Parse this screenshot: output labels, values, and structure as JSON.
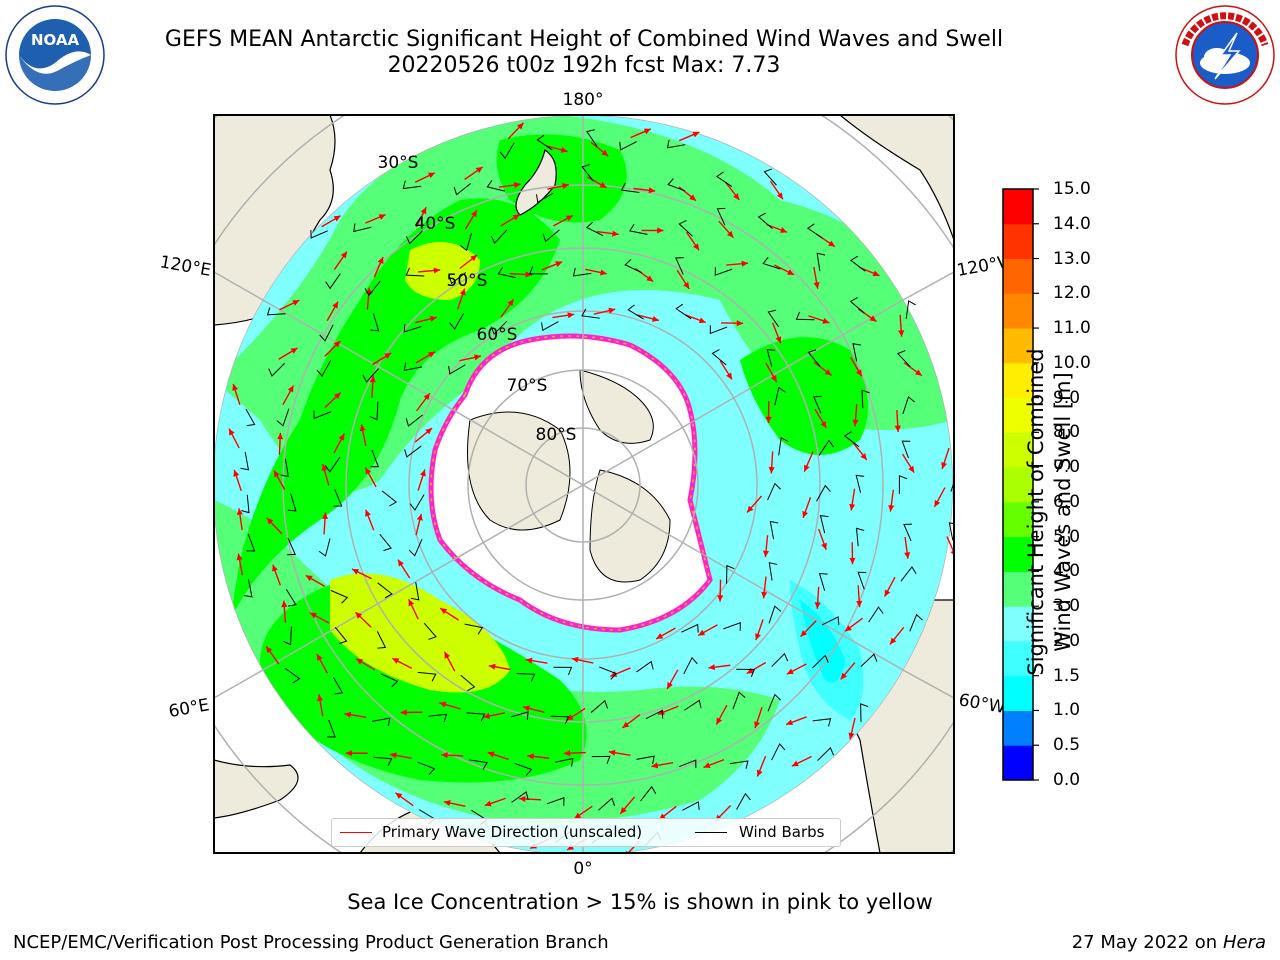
{
  "header": {
    "title_line1": "GEFS MEAN Antarctic Significant Height of Combined Wind Waves and Swell",
    "title_line2": "20220526 t00z 192h fcst   Max: 7.73"
  },
  "logos": {
    "left": {
      "icon": "noaa-logo",
      "text": "NOAA",
      "ring_text": "NATIONAL OCEANIC AND ATMOSPHERIC ADMINISTRATION · U.S. DEPARTMENT OF COMMERCE"
    },
    "right": {
      "icon": "nws-logo",
      "ring_text": "NATIONAL WEATHER SERVICE"
    }
  },
  "map": {
    "projection": "south-polar-stereographic",
    "longitude_labels": [
      "180°",
      "120°E",
      "120°W",
      "60°E",
      "60°W",
      "0°"
    ],
    "latitude_labels": [
      "30°S",
      "40°S",
      "50°S",
      "60°S",
      "70°S",
      "80°S"
    ],
    "colors": {
      "land": "#efebdc",
      "ice": "#ffffff",
      "arrow": "#ff0000",
      "barb": "#000000",
      "ice_edge": "#ff22cc",
      "grid": "#b0b0b0"
    }
  },
  "colorbar": {
    "label_line1": "Significant Height of Combined",
    "label_line2": "Wind Waves and Swell [m]",
    "ticks": [
      "0.0",
      "0.5",
      "1.0",
      "1.5",
      "2.0",
      "3.0",
      "4.0",
      "5.0",
      "6.0",
      "7.0",
      "8.0",
      "9.0",
      "10.0",
      "11.0",
      "12.0",
      "13.0",
      "14.0",
      "15.0"
    ],
    "colors": [
      "#0000ff",
      "#0080ff",
      "#00ffff",
      "#40ffff",
      "#80ffff",
      "#55ff77",
      "#00ff00",
      "#66ff00",
      "#aaff00",
      "#ccff00",
      "#eeff00",
      "#ffee00",
      "#ffbb00",
      "#ff8800",
      "#ff6600",
      "#ff3300",
      "#ff0000"
    ]
  },
  "legend": {
    "primary_wave": "Primary Wave Direction (unscaled)",
    "wind_barbs": "Wind Barbs"
  },
  "footer": {
    "note": "Sea Ice Concentration > 15% is shown in pink to yellow",
    "credit": "NCEP/EMC/Verification Post Processing Product Generation Branch",
    "date": "27 May 2022 on",
    "machine": "Hera"
  }
}
